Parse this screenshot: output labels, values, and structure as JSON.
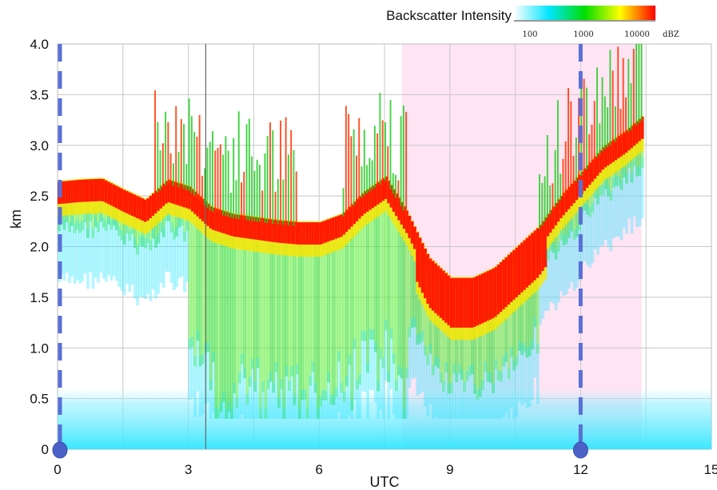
{
  "chart_data": {
    "type": "heatmap",
    "xlabel": "UTC",
    "ylabel": "km",
    "xlim": [
      0,
      15
    ],
    "ylim": [
      0,
      4.0
    ],
    "x_ticks": [
      {
        "value": 0,
        "label": "0"
      },
      {
        "value": 3,
        "label": "3"
      },
      {
        "value": 6,
        "label": "6"
      },
      {
        "value": 9,
        "label": "9"
      },
      {
        "value": 12,
        "label": "12"
      },
      {
        "value": 15,
        "label": "15"
      }
    ],
    "y_ticks": [
      {
        "value": 0,
        "label": "0"
      },
      {
        "value": 0.5,
        "label": "0.5"
      },
      {
        "value": 1.0,
        "label": "1.0"
      },
      {
        "value": 1.5,
        "label": "1.5"
      },
      {
        "value": 2.0,
        "label": "2.0"
      },
      {
        "value": 2.5,
        "label": "2.5"
      },
      {
        "value": 3.0,
        "label": "3.0"
      },
      {
        "value": 3.5,
        "label": "3.5"
      },
      {
        "value": 4.0,
        "label": "4.0"
      }
    ],
    "grid": true,
    "colorbar": {
      "title": "Backscatter Intensity",
      "unit": "dBZ",
      "scale": "log",
      "ticks": [
        "100",
        "1000",
        "10000"
      ],
      "colors": [
        "#ffffff",
        "#00e5ff",
        "#00dd00",
        "#ffff00",
        "#ff0000"
      ]
    },
    "shaded_region": {
      "x_start": 7.9,
      "x_end": 13.4,
      "color": "#ffe4f4"
    },
    "dashed_markers": [
      {
        "x": 0,
        "color": "#5a6fd6"
      },
      {
        "x": 12,
        "color": "#5a6fd6"
      }
    ],
    "solid_vertical_line": {
      "x": 3.4,
      "color": "#666666"
    },
    "cloud_top_km": [
      [
        0,
        2.6
      ],
      [
        0.5,
        2.62
      ],
      [
        1.0,
        2.63
      ],
      [
        1.5,
        2.52
      ],
      [
        2.0,
        2.42
      ],
      [
        2.5,
        2.62
      ],
      [
        3.0,
        2.55
      ],
      [
        3.5,
        2.35
      ],
      [
        4.0,
        2.28
      ],
      [
        4.5,
        2.25
      ],
      [
        5.0,
        2.22
      ],
      [
        5.5,
        2.2
      ],
      [
        6.0,
        2.2
      ],
      [
        6.5,
        2.28
      ],
      [
        7.0,
        2.5
      ],
      [
        7.5,
        2.65
      ],
      [
        8.0,
        2.3
      ],
      [
        8.5,
        1.85
      ],
      [
        9.0,
        1.65
      ],
      [
        9.5,
        1.65
      ],
      [
        10.0,
        1.75
      ],
      [
        10.5,
        1.95
      ],
      [
        11.0,
        2.15
      ],
      [
        11.5,
        2.45
      ],
      [
        12.0,
        2.7
      ],
      [
        12.5,
        2.95
      ],
      [
        13.0,
        3.1
      ],
      [
        13.4,
        3.25
      ]
    ],
    "low_backscatter_top_km": 0.6
  }
}
